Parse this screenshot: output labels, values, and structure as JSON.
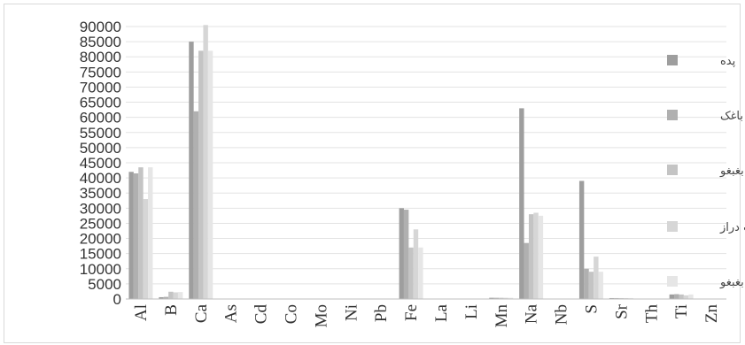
{
  "chart_data": {
    "type": "bar",
    "title": "",
    "xlabel": "",
    "ylabel": "",
    "ylim": [
      0,
      90000
    ],
    "yticks": [
      0,
      5000,
      10000,
      15000,
      20000,
      25000,
      30000,
      35000,
      40000,
      45000,
      50000,
      55000,
      60000,
      65000,
      70000,
      75000,
      80000,
      85000,
      90000
    ],
    "grid": "horizontal",
    "legend_position": "right",
    "categories": [
      "Al",
      "B",
      "Ca",
      "As",
      "Cd",
      "Co",
      "Mo",
      "Ni",
      "Pb",
      "Fe",
      "La",
      "Li",
      "Mn",
      "Na",
      "Nb",
      "S",
      "Sr",
      "Th",
      "Ti",
      "Zn"
    ],
    "series": [
      {
        "name": "پده",
        "color": "#9e9e9e",
        "values": [
          42000,
          600,
          85000,
          20,
          5,
          20,
          10,
          30,
          20,
          30000,
          30,
          40,
          400,
          63000,
          15,
          39000,
          300,
          15,
          1500,
          100
        ]
      },
      {
        "name": "باغک",
        "color": "#b0b0b0",
        "values": [
          41500,
          700,
          62000,
          20,
          5,
          20,
          10,
          30,
          20,
          29500,
          30,
          40,
          400,
          18500,
          15,
          10000,
          300,
          15,
          1600,
          100
        ]
      },
      {
        "name": "بغبغو",
        "color": "#c4c4c4",
        "values": [
          43500,
          2400,
          82000,
          20,
          5,
          20,
          10,
          30,
          20,
          17000,
          30,
          40,
          400,
          28000,
          15,
          9000,
          300,
          15,
          1500,
          100
        ]
      },
      {
        "name": "آب دراز",
        "color": "#d6d6d6",
        "values": [
          33000,
          2200,
          90500,
          20,
          5,
          20,
          10,
          30,
          20,
          23000,
          30,
          40,
          400,
          28500,
          15,
          14000,
          300,
          15,
          1200,
          100
        ]
      },
      {
        "name": "بغبغو",
        "color": "#e6e6e6",
        "values": [
          43500,
          2300,
          82000,
          20,
          5,
          20,
          10,
          30,
          20,
          17000,
          30,
          40,
          400,
          27500,
          15,
          9000,
          300,
          15,
          1500,
          100
        ]
      }
    ]
  }
}
